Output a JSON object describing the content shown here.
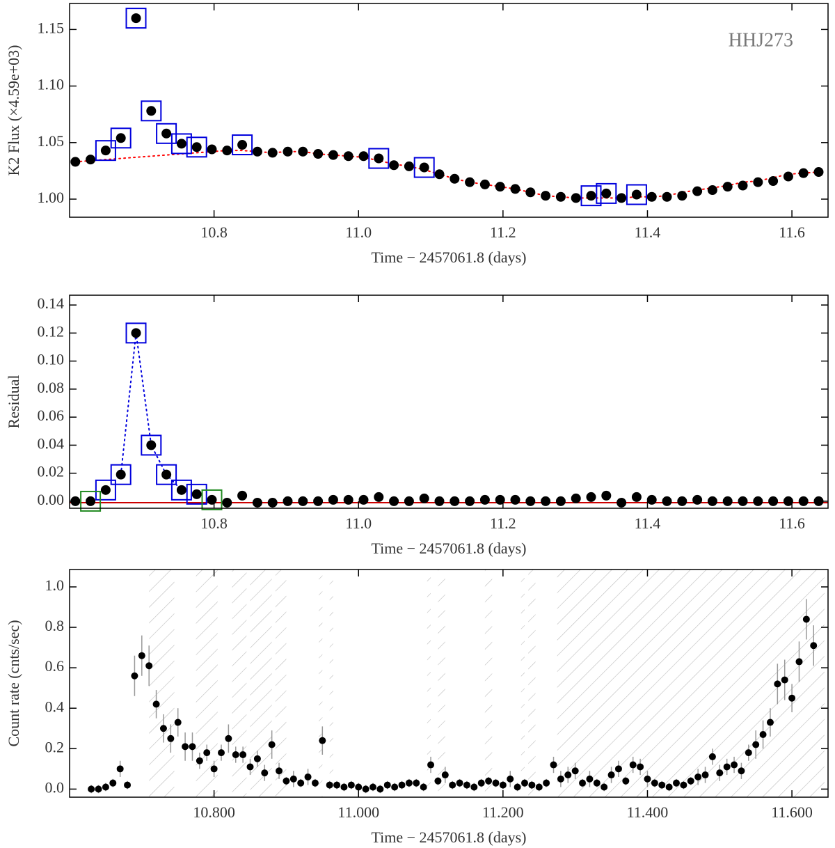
{
  "chart_data": [
    {
      "type": "scatter",
      "annotation": "HHJ273",
      "xlabel": "Time − 2457061.8 (days)",
      "ylabel": "K2 Flux (×4.59e+03)",
      "xlim": [
        10.6,
        11.65
      ],
      "ylim": [
        0.984,
        1.173
      ],
      "xticks": [
        10.8,
        {
          "value": 11.0,
          "label": "11.0"
        },
        11.2,
        11.4,
        11.6
      ],
      "yticks": [
        {
          "value": 1.0,
          "label": "1.00"
        },
        1.05,
        {
          "value": 1.1,
          "label": "1.10"
        },
        1.15
      ],
      "x": [
        10.608,
        10.629,
        10.65,
        10.671,
        10.692,
        10.713,
        10.734,
        10.755,
        10.776,
        10.797,
        10.818,
        10.839,
        10.86,
        10.881,
        10.902,
        10.923,
        10.944,
        10.965,
        10.986,
        11.007,
        11.028,
        11.049,
        11.07,
        11.091,
        11.112,
        11.133,
        11.154,
        11.175,
        11.196,
        11.217,
        11.238,
        11.259,
        11.28,
        11.301,
        11.322,
        11.343,
        11.364,
        11.385,
        11.406,
        11.427,
        11.448,
        11.469,
        11.49,
        11.511,
        11.532,
        11.553,
        11.574,
        11.595,
        11.616,
        11.637
      ],
      "series": [
        {
          "marker": "dotted",
          "color": "#ff0000",
          "values": [
            1.033,
            1.034,
            1.035,
            1.036,
            1.037,
            1.038,
            1.039,
            1.04,
            1.041,
            1.042,
            1.043,
            1.043,
            1.042,
            1.041,
            1.042,
            1.042,
            1.04,
            1.039,
            1.038,
            1.037,
            1.034,
            1.031,
            1.029,
            1.026,
            1.022,
            1.018,
            1.015,
            1.013,
            1.011,
            1.009,
            1.006,
            1.003,
            1.002,
            1.001,
            1.001,
            1.001,
            1.001,
            1.002,
            1.002,
            1.003,
            1.006,
            1.008,
            1.01,
            1.012,
            1.015,
            1.016,
            1.019,
            1.022,
            1.023,
            1.024
          ]
        },
        {
          "marker": "dot",
          "color": "#000000",
          "values": [
            1.033,
            1.035,
            1.043,
            1.054,
            1.16,
            1.078,
            1.058,
            1.049,
            1.046,
            1.044,
            1.043,
            1.048,
            1.042,
            1.041,
            1.042,
            1.042,
            1.04,
            1.039,
            1.038,
            1.038,
            1.036,
            1.03,
            1.029,
            1.028,
            1.022,
            1.018,
            1.015,
            1.013,
            1.011,
            1.009,
            1.006,
            1.003,
            1.002,
            1.001,
            1.003,
            1.005,
            1.001,
            1.004,
            1.002,
            1.002,
            1.003,
            1.007,
            1.008,
            1.011,
            1.012,
            1.015,
            1.016,
            1.02,
            1.023,
            1.024
          ]
        },
        {
          "marker": "square",
          "color": "#0000dd",
          "values": [
            null,
            null,
            1.043,
            1.054,
            1.16,
            1.078,
            1.058,
            1.049,
            1.046,
            null,
            null,
            1.048,
            null,
            null,
            null,
            null,
            null,
            null,
            null,
            null,
            1.036,
            null,
            null,
            1.028,
            null,
            null,
            null,
            null,
            null,
            null,
            null,
            null,
            null,
            null,
            1.003,
            1.005,
            null,
            1.004,
            null,
            null,
            null,
            null,
            null,
            null,
            null,
            null,
            null,
            null,
            null,
            null
          ]
        }
      ]
    },
    {
      "type": "scatter",
      "xlabel": "Time − 2457061.8 (days)",
      "ylabel": "Residual",
      "xlim": [
        10.6,
        11.65
      ],
      "ylim": [
        -0.005,
        0.147
      ],
      "xticks": [
        10.8,
        {
          "value": 11.0,
          "label": "11.0"
        },
        11.2,
        11.4,
        11.6
      ],
      "yticks": [
        {
          "value": 0,
          "label": "0.00"
        },
        0.02,
        0.04,
        0.06,
        0.08,
        {
          "value": 0.1,
          "label": "0.10"
        },
        0.12,
        0.14
      ],
      "hline": {
        "value": -0.001,
        "color": "#cc0000"
      },
      "x": [
        10.608,
        10.629,
        10.65,
        10.671,
        10.692,
        10.713,
        10.734,
        10.755,
        10.776,
        10.797,
        10.818,
        10.839,
        10.86,
        10.881,
        10.902,
        10.923,
        10.944,
        10.965,
        10.986,
        11.007,
        11.028,
        11.049,
        11.07,
        11.091,
        11.112,
        11.133,
        11.154,
        11.175,
        11.196,
        11.217,
        11.238,
        11.259,
        11.28,
        11.301,
        11.322,
        11.343,
        11.364,
        11.385,
        11.406,
        11.427,
        11.448,
        11.469,
        11.49,
        11.511,
        11.532,
        11.553,
        11.574,
        11.595,
        11.616,
        11.637
      ],
      "series": [
        {
          "marker": "dotted",
          "color": "#0000dd",
          "values": [
            null,
            null,
            null,
            0.019,
            0.12,
            0.04,
            0.019,
            0.008,
            null,
            null,
            null,
            null,
            null,
            null,
            null,
            null,
            null,
            null,
            null,
            null,
            null,
            null,
            null,
            null,
            null,
            null,
            null,
            null,
            null,
            null,
            null,
            null,
            null,
            null,
            null,
            null,
            null,
            null,
            null,
            null,
            null,
            null,
            null,
            null,
            null,
            null,
            null,
            null,
            null,
            null
          ]
        },
        {
          "marker": "dot",
          "color": "#000000",
          "values": [
            0.0,
            0.0,
            0.008,
            0.019,
            0.12,
            0.04,
            0.019,
            0.008,
            0.005,
            0.001,
            -0.001,
            0.004,
            -0.001,
            -0.001,
            0.0,
            0.0,
            0.0,
            0.001,
            0.001,
            0.001,
            0.003,
            0.0,
            0.0,
            0.002,
            0.0,
            0.0,
            0.0,
            0.001,
            0.001,
            0.001,
            0.0,
            0.0,
            0.0,
            0.002,
            0.003,
            0.004,
            -0.001,
            0.003,
            0.001,
            0.0,
            0.0,
            0.001,
            0.0,
            0.0,
            0.0,
            0.0,
            0.0,
            0.0,
            0.0,
            0.0
          ]
        },
        {
          "marker": "square",
          "color": "#0000dd",
          "values": [
            null,
            null,
            0.008,
            0.019,
            0.12,
            0.04,
            0.019,
            0.008,
            0.005,
            null,
            null,
            null,
            null,
            null,
            null,
            null,
            null,
            null,
            null,
            null,
            null,
            null,
            null,
            null,
            null,
            null,
            null,
            null,
            null,
            null,
            null,
            null,
            null,
            null,
            null,
            null,
            null,
            null,
            null,
            null,
            null,
            null,
            null,
            null,
            null,
            null,
            null,
            null,
            null,
            null
          ]
        },
        {
          "marker": "square",
          "color": "#228b22",
          "values": [
            null,
            0.0,
            null,
            null,
            null,
            null,
            null,
            null,
            null,
            0.001,
            null,
            null,
            null,
            null,
            null,
            null,
            null,
            null,
            null,
            null,
            null,
            null,
            null,
            null,
            null,
            null,
            null,
            null,
            null,
            null,
            null,
            null,
            null,
            null,
            null,
            null,
            null,
            null,
            null,
            null,
            null,
            null,
            null,
            null,
            null,
            null,
            null,
            null,
            null,
            null
          ]
        }
      ]
    },
    {
      "type": "scatter",
      "xlabel": "Time − 2457061.8 (days)",
      "ylabel": "Count rate (cnts/sec)",
      "xlim": [
        10.6,
        11.65
      ],
      "ylim": [
        -0.04,
        1.086
      ],
      "xticks": [
        {
          "value": 10.8,
          "label": "10.800"
        },
        {
          "value": 11.0,
          "label": "11.000"
        },
        {
          "value": 11.2,
          "label": "11.200"
        },
        {
          "value": 11.4,
          "label": "11.400"
        },
        {
          "value": 11.6,
          "label": "11.600"
        }
      ],
      "yticks": [
        {
          "value": 0,
          "label": "0.0"
        },
        0.2,
        0.4,
        0.6,
        0.8,
        {
          "value": 1.0,
          "label": "1.0"
        }
      ],
      "shaded": [
        [
          10.71,
          10.745
        ],
        [
          10.775,
          10.805
        ],
        [
          10.825,
          10.845
        ],
        [
          10.85,
          10.88
        ],
        [
          10.885,
          10.9
        ],
        [
          10.945,
          10.95
        ],
        [
          10.96,
          10.965
        ],
        [
          11.095,
          11.1
        ],
        [
          11.11,
          11.12
        ],
        [
          11.175,
          11.185
        ],
        [
          11.225,
          11.23
        ],
        [
          11.235,
          11.245
        ],
        [
          11.275,
          11.645
        ]
      ],
      "x": [
        10.63,
        10.64,
        10.65,
        10.66,
        10.67,
        10.68,
        10.69,
        10.7,
        10.71,
        10.72,
        10.73,
        10.74,
        10.75,
        10.76,
        10.77,
        10.78,
        10.79,
        10.8,
        10.81,
        10.82,
        10.83,
        10.84,
        10.85,
        10.86,
        10.87,
        10.88,
        10.89,
        10.9,
        10.91,
        10.92,
        10.93,
        10.94,
        10.95,
        10.96,
        10.97,
        10.98,
        10.99,
        11.0,
        11.01,
        11.02,
        11.03,
        11.04,
        11.05,
        11.06,
        11.07,
        11.08,
        11.09,
        11.1,
        11.11,
        11.12,
        11.13,
        11.14,
        11.15,
        11.16,
        11.17,
        11.18,
        11.19,
        11.2,
        11.21,
        11.22,
        11.23,
        11.24,
        11.25,
        11.26,
        11.27,
        11.28,
        11.29,
        11.3,
        11.31,
        11.32,
        11.33,
        11.34,
        11.35,
        11.36,
        11.37,
        11.38,
        11.39,
        11.4,
        11.41,
        11.42,
        11.43,
        11.44,
        11.45,
        11.46,
        11.47,
        11.48,
        11.49,
        11.5,
        11.51,
        11.52,
        11.53,
        11.54,
        11.55,
        11.56,
        11.57,
        11.58,
        11.59,
        11.6,
        11.61,
        11.62,
        11.63
      ],
      "series": [
        {
          "marker": "dot",
          "color": "#000000",
          "error_color": "#999999",
          "values": [
            0.0,
            0.0,
            0.01,
            0.03,
            0.1,
            0.02,
            0.56,
            0.66,
            0.61,
            0.42,
            0.3,
            0.25,
            0.33,
            0.21,
            0.21,
            0.14,
            0.18,
            0.1,
            0.18,
            0.25,
            0.17,
            0.17,
            0.11,
            0.15,
            0.08,
            0.22,
            0.09,
            0.04,
            0.05,
            0.03,
            0.06,
            0.03,
            0.24,
            0.02,
            0.02,
            0.01,
            0.02,
            0.01,
            0.0,
            0.01,
            0.0,
            0.02,
            0.01,
            0.02,
            0.03,
            0.03,
            0.01,
            0.12,
            0.04,
            0.07,
            0.02,
            0.03,
            0.02,
            0.01,
            0.03,
            0.04,
            0.03,
            0.02,
            0.05,
            0.01,
            0.03,
            0.02,
            0.01,
            0.03,
            0.12,
            0.05,
            0.07,
            0.09,
            0.03,
            0.05,
            0.03,
            0.01,
            0.07,
            0.1,
            0.04,
            0.12,
            0.11,
            0.05,
            0.03,
            0.02,
            0.01,
            0.03,
            0.02,
            0.04,
            0.06,
            0.07,
            0.16,
            0.08,
            0.11,
            0.12,
            0.09,
            0.18,
            0.22,
            0.27,
            0.33,
            0.52,
            0.54,
            0.45,
            0.63,
            0.84,
            0.71
          ],
          "errors": [
            0.02,
            0.02,
            0.02,
            0.02,
            0.04,
            0.02,
            0.1,
            0.1,
            0.1,
            0.07,
            0.07,
            0.07,
            0.07,
            0.07,
            0.07,
            0.04,
            0.04,
            0.04,
            0.04,
            0.07,
            0.04,
            0.04,
            0.04,
            0.04,
            0.04,
            0.07,
            0.04,
            0.02,
            0.04,
            0.02,
            0.04,
            0.02,
            0.07,
            0.02,
            0.02,
            0.02,
            0.02,
            0.02,
            0.02,
            0.02,
            0.02,
            0.02,
            0.02,
            0.02,
            0.02,
            0.02,
            0.02,
            0.04,
            0.02,
            0.04,
            0.02,
            0.02,
            0.02,
            0.02,
            0.02,
            0.02,
            0.02,
            0.02,
            0.04,
            0.02,
            0.02,
            0.02,
            0.02,
            0.02,
            0.04,
            0.04,
            0.04,
            0.04,
            0.02,
            0.04,
            0.02,
            0.02,
            0.04,
            0.04,
            0.02,
            0.04,
            0.04,
            0.04,
            0.02,
            0.02,
            0.02,
            0.02,
            0.02,
            0.02,
            0.04,
            0.04,
            0.04,
            0.04,
            0.04,
            0.04,
            0.04,
            0.04,
            0.07,
            0.07,
            0.07,
            0.1,
            0.1,
            0.07,
            0.1,
            0.1,
            0.1
          ]
        }
      ]
    }
  ]
}
